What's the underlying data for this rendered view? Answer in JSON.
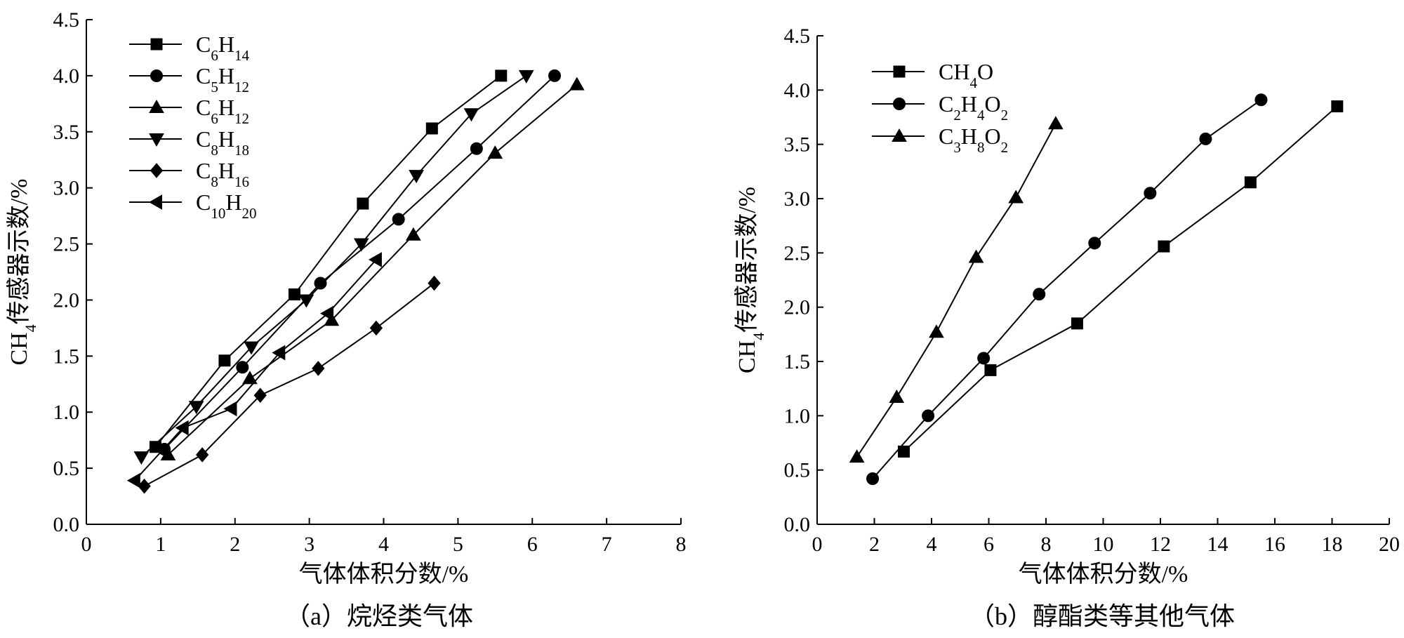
{
  "chart_data": [
    {
      "type": "line",
      "caption": "（a）烷烃类气体",
      "xlabel": "气体体积分数/%",
      "ylabel": {
        "base": "CH",
        "sub": "4",
        "rest": "传感器示数/%"
      },
      "xlim": [
        0,
        8
      ],
      "ylim": [
        0,
        4.5
      ],
      "xticks": [
        "0",
        "1",
        "2",
        "3",
        "4",
        "5",
        "6",
        "7",
        "8"
      ],
      "yticks": [
        "0.0",
        "0.5",
        "1.0",
        "1.5",
        "2.0",
        "2.5",
        "3.0",
        "3.5",
        "4.0",
        "4.5"
      ],
      "grid": false,
      "legend_position": "top-left",
      "series": [
        {
          "name": "C6H14",
          "label_parts": [
            [
              "C",
              ""
            ],
            [
              "6",
              "sub"
            ],
            [
              "H",
              ""
            ],
            [
              "14",
              "sub"
            ]
          ],
          "marker": "square",
          "x": [
            0.93,
            1.86,
            2.8,
            3.72,
            4.65,
            5.58
          ],
          "y": [
            0.69,
            1.46,
            2.05,
            2.86,
            3.53,
            4.0
          ]
        },
        {
          "name": "C5H12",
          "label_parts": [
            [
              "C",
              ""
            ],
            [
              "5",
              "sub"
            ],
            [
              "H",
              ""
            ],
            [
              "12",
              "sub"
            ]
          ],
          "marker": "circle",
          "x": [
            1.05,
            2.1,
            3.15,
            4.2,
            5.25,
            6.3
          ],
          "y": [
            0.67,
            1.4,
            2.15,
            2.72,
            3.35,
            4.0
          ]
        },
        {
          "name": "C6H12",
          "label_parts": [
            [
              "C",
              ""
            ],
            [
              "6",
              "sub"
            ],
            [
              "H",
              ""
            ],
            [
              "12",
              "sub"
            ]
          ],
          "marker": "triangle-up",
          "x": [
            1.1,
            2.2,
            3.3,
            4.4,
            5.5,
            6.6
          ],
          "y": [
            0.62,
            1.3,
            1.82,
            2.58,
            3.31,
            3.92
          ]
        },
        {
          "name": "C8H18",
          "label_parts": [
            [
              "C",
              ""
            ],
            [
              "8",
              "sub"
            ],
            [
              "H",
              ""
            ],
            [
              "18",
              "sub"
            ]
          ],
          "marker": "triangle-down",
          "x": [
            0.74,
            1.48,
            2.22,
            2.96,
            3.7,
            4.44,
            5.18,
            5.92
          ],
          "y": [
            0.6,
            1.05,
            1.58,
            2.0,
            2.5,
            3.11,
            3.66,
            4.0
          ]
        },
        {
          "name": "C8H16",
          "label_parts": [
            [
              "C",
              ""
            ],
            [
              "8",
              "sub"
            ],
            [
              "H",
              ""
            ],
            [
              "16",
              "sub"
            ]
          ],
          "marker": "diamond",
          "x": [
            0.78,
            1.56,
            2.34,
            3.12,
            3.9,
            4.68
          ],
          "y": [
            0.34,
            0.62,
            1.15,
            1.39,
            1.75,
            2.15
          ]
        },
        {
          "name": "C10H20",
          "label_parts": [
            [
              "C",
              ""
            ],
            [
              "10",
              "sub"
            ],
            [
              "H",
              ""
            ],
            [
              "20",
              "sub"
            ]
          ],
          "marker": "triangle-left",
          "x": [
            0.65,
            1.3,
            1.95,
            2.6,
            3.25,
            3.9
          ],
          "y": [
            0.39,
            0.86,
            1.03,
            1.53,
            1.88,
            2.36
          ]
        }
      ]
    },
    {
      "type": "line",
      "caption": "（b）醇酯类等其他气体",
      "xlabel": "气体体积分数/%",
      "ylabel": {
        "base": "CH",
        "sub": "4",
        "rest": "传感器示数/%"
      },
      "xlim": [
        0,
        20
      ],
      "ylim": [
        0,
        4.5
      ],
      "xticks": [
        "0",
        "2",
        "4",
        "6",
        "8",
        "10",
        "12",
        "14",
        "16",
        "18",
        "20"
      ],
      "yticks": [
        "0.0",
        "0.5",
        "1.0",
        "1.5",
        "2.0",
        "2.5",
        "3.0",
        "3.5",
        "4.0",
        "4.5"
      ],
      "grid": false,
      "legend_position": "top-left",
      "series": [
        {
          "name": "CH4O",
          "label_parts": [
            [
              "CH",
              ""
            ],
            [
              "4",
              "sub"
            ],
            [
              "O",
              ""
            ]
          ],
          "marker": "square",
          "x": [
            3.03,
            6.06,
            9.09,
            12.12,
            15.15,
            18.18
          ],
          "y": [
            0.67,
            1.42,
            1.85,
            2.56,
            3.15,
            3.85
          ]
        },
        {
          "name": "C2H4O2",
          "label_parts": [
            [
              "C",
              ""
            ],
            [
              "2",
              "sub"
            ],
            [
              "H",
              ""
            ],
            [
              "4",
              "sub"
            ],
            [
              "O",
              ""
            ],
            [
              "2",
              "sub"
            ]
          ],
          "marker": "circle",
          "x": [
            1.94,
            3.88,
            5.82,
            7.76,
            9.7,
            11.64,
            13.58,
            15.52
          ],
          "y": [
            0.42,
            1.0,
            1.53,
            2.12,
            2.59,
            3.05,
            3.55,
            3.91
          ]
        },
        {
          "name": "C3H8O2",
          "label_parts": [
            [
              "C",
              ""
            ],
            [
              "3",
              "sub"
            ],
            [
              "H",
              ""
            ],
            [
              "8",
              "sub"
            ],
            [
              "O",
              ""
            ],
            [
              "2",
              "sub"
            ]
          ],
          "marker": "triangle-up",
          "x": [
            1.39,
            2.78,
            4.17,
            5.56,
            6.95,
            8.34
          ],
          "y": [
            0.62,
            1.17,
            1.77,
            2.46,
            3.01,
            3.69
          ]
        }
      ]
    }
  ]
}
